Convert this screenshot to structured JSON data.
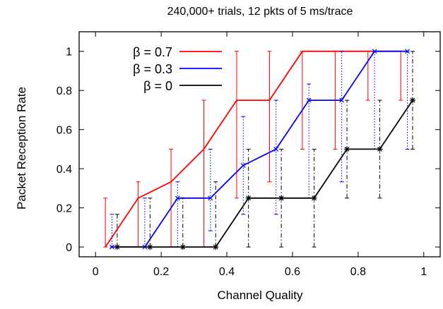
{
  "chart_data": {
    "type": "line",
    "title": "240,000+ trials, 12 pkts of 5 ms/trace",
    "xlabel": "Channel Quality",
    "ylabel": "Packet Reception Rate",
    "xlim": [
      -0.05,
      1.05
    ],
    "ylim": [
      -0.05,
      1.1
    ],
    "xticks": [
      0,
      0.2,
      0.4,
      0.6,
      0.8,
      1
    ],
    "xtick_labels": [
      "0",
      "0.2",
      "0.4",
      "0.6",
      "0.8",
      "1"
    ],
    "yticks": [
      0,
      0.2,
      0.4,
      0.6,
      0.8,
      1
    ],
    "ytick_labels": [
      "0",
      "0.2",
      "0.4",
      "0.6",
      "0.8",
      "1"
    ],
    "grid": false,
    "legend_position": "top-left",
    "series": [
      {
        "name": "β = 0.7",
        "color": "#ff0000",
        "error_style": "solid",
        "marker": "none",
        "x": [
          0.03,
          0.13,
          0.23,
          0.33,
          0.43,
          0.53,
          0.63,
          0.73,
          0.83,
          0.93
        ],
        "y": [
          0,
          0.25,
          0.333,
          0.5,
          0.75,
          0.75,
          1,
          1,
          1,
          1
        ],
        "y_low": [
          0,
          0,
          0,
          0,
          0.25,
          0.333,
          0.5,
          0.5,
          0.75,
          0.75
        ],
        "y_high": [
          0.25,
          0.333,
          0.5,
          0.75,
          1,
          1,
          1,
          1,
          1,
          1
        ]
      },
      {
        "name": "β = 0.3",
        "color": "#0000ff",
        "error_style": "dotted",
        "marker": "x",
        "x": [
          0.05,
          0.15,
          0.25,
          0.35,
          0.45,
          0.55,
          0.65,
          0.75,
          0.85,
          0.95
        ],
        "y": [
          0,
          0,
          0.25,
          0.25,
          0.417,
          0.5,
          0.75,
          0.75,
          1,
          1
        ],
        "y_low": [
          0,
          0,
          0,
          0.083,
          0.167,
          0.167,
          0.25,
          0.333,
          0.5,
          0.5
        ],
        "y_high": [
          0.167,
          0.25,
          0.333,
          0.5,
          0.667,
          0.75,
          0.833,
          1,
          1,
          1
        ]
      },
      {
        "name": "β = 0",
        "color": "#000000",
        "error_style": "dashdot",
        "marker": "asterisk",
        "x": [
          0.066,
          0.166,
          0.266,
          0.366,
          0.466,
          0.566,
          0.666,
          0.766,
          0.866,
          0.966
        ],
        "y": [
          0,
          0,
          0,
          0,
          0.25,
          0.25,
          0.25,
          0.5,
          0.5,
          0.75
        ],
        "y_low": [
          0,
          0,
          0,
          0,
          0,
          0,
          0,
          0.25,
          0.25,
          0.5
        ],
        "y_high": [
          0.167,
          0.25,
          0.25,
          0.333,
          0.5,
          0.5,
          0.5,
          0.75,
          0.75,
          1
        ]
      }
    ]
  }
}
